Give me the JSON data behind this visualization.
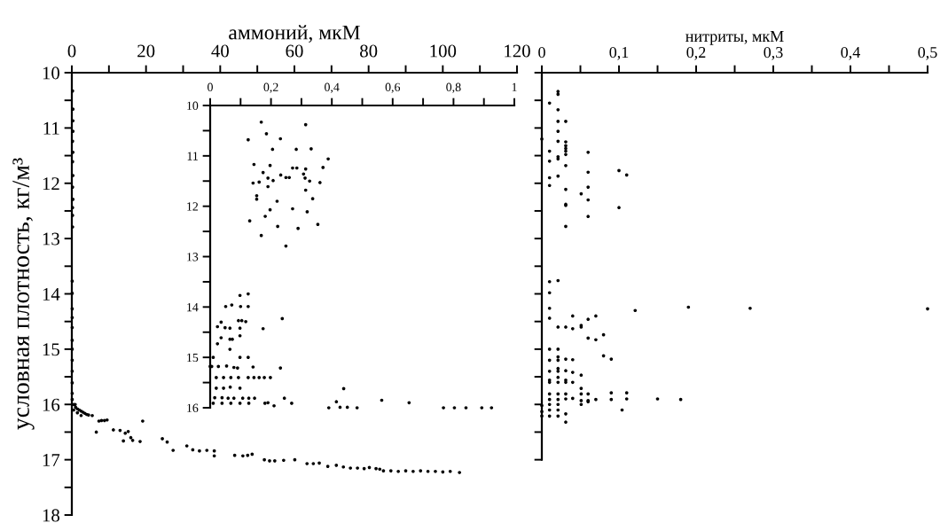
{
  "chart_data": [
    {
      "type": "scatter",
      "xlabel": "аммоний, мкМ",
      "ylabel": "условная плотность, кг/м³",
      "marker": "circle",
      "xlim": [
        0,
        120
      ],
      "ylim": [
        18,
        10
      ],
      "xticks": [
        0,
        {
          "value": 10,
          "label": null
        },
        20,
        {
          "value": 30,
          "label": null
        },
        40,
        {
          "value": 50,
          "label": null
        },
        60,
        {
          "value": 70,
          "label": null
        },
        80,
        {
          "value": 90,
          "label": null
        },
        100,
        {
          "value": 110,
          "label": null
        },
        120
      ],
      "yticks": [
        10,
        {
          "value": 10.5,
          "label": null
        },
        11,
        {
          "value": 11.5,
          "label": null
        },
        12,
        {
          "value": 12.5,
          "label": null
        },
        13,
        {
          "value": 13.5,
          "label": null
        },
        14,
        {
          "value": 14.5,
          "label": null
        },
        15,
        {
          "value": 15.5,
          "label": null
        },
        16,
        {
          "value": 16.5,
          "label": null
        },
        17,
        {
          "value": 17.5,
          "label": null
        },
        18
      ],
      "series": [
        {
          "color": "#000000",
          "x": [
            0.2,
            0.3,
            0.3,
            0.3,
            0.2,
            0.3,
            0.2,
            0.3,
            0.2,
            0.3,
            0.2,
            0.2,
            0.2,
            0.1,
            0.1,
            0.1,
            0.1,
            0.1,
            0.1,
            0.1,
            0.1,
            0.1,
            0.1,
            0.1,
            0.1,
            0.5,
            0.9,
            1,
            1.5,
            2,
            2.5,
            3,
            3.5,
            4,
            4.5,
            5.5,
            0.5,
            1.5,
            2.5,
            6.6,
            7.3,
            8,
            8.8,
            9.5,
            19.1,
            11.2,
            13.0,
            14.4,
            15.2,
            13.9,
            15.9,
            16.4,
            18.4,
            24.4,
            25.7,
            27.3,
            31,
            32.6,
            34.4,
            36.4,
            38.4,
            38.4,
            43.9,
            46.1,
            47.4,
            48.6,
            51.9,
            53.3,
            54.7,
            57.1,
            60.1,
            63.4,
            65.1,
            66.7,
            69.0,
            71.3,
            73.2,
            75.1,
            77,
            78.8,
            80.2,
            82,
            83,
            84,
            86,
            88,
            90,
            92,
            94,
            96,
            98,
            100,
            102,
            104.5
          ],
          "values": [
            10.33,
            10.66,
            10.87,
            11.06,
            11.24,
            11.44,
            11.61,
            11.86,
            12.07,
            12.29,
            12.44,
            12.58,
            12.79,
            13.77,
            13.99,
            14.27,
            14.43,
            14.61,
            14.84,
            15.0,
            15.2,
            15.4,
            15.61,
            15.8,
            15.91,
            16.0,
            16.0,
            16.05,
            16.08,
            16.1,
            16.12,
            16.14,
            16.16,
            16.18,
            16.19,
            16.2,
            16.1,
            16.15,
            16.2,
            16.5,
            16.3,
            16.29,
            16.29,
            16.28,
            16.3,
            16.46,
            16.47,
            16.52,
            16.49,
            16.66,
            16.6,
            16.65,
            16.67,
            16.62,
            16.68,
            16.83,
            16.75,
            16.82,
            16.84,
            16.83,
            16.84,
            16.93,
            16.92,
            16.93,
            16.92,
            16.9,
            17.0,
            17.02,
            17.02,
            17.01,
            17.0,
            17.07,
            17.07,
            17.06,
            17.12,
            17.1,
            17.13,
            17.15,
            17.15,
            17.16,
            17.14,
            17.16,
            17.17,
            17.2,
            17.2,
            17.21,
            17.2,
            17.21,
            17.2,
            17.21,
            17.21,
            17.22,
            17.21,
            17.23
          ]
        }
      ]
    },
    {
      "type": "scatter",
      "marker": "circle",
      "xlim": [
        0,
        1
      ],
      "ylim": [
        16,
        10
      ],
      "xticks": [
        0,
        {
          "value": 0.1,
          "label": null
        },
        {
          "value": 0.2,
          "label": "0,2"
        },
        {
          "value": 0.3,
          "label": null
        },
        {
          "value": 0.4,
          "label": "0,4"
        },
        {
          "value": 0.5,
          "label": null
        },
        {
          "value": 0.6,
          "label": "0,6"
        },
        {
          "value": 0.7,
          "label": null
        },
        {
          "value": 0.8,
          "label": "0,8"
        },
        {
          "value": 0.9,
          "label": null
        },
        1
      ],
      "yticks": [
        10,
        {
          "value": 10.5,
          "label": null
        },
        11,
        {
          "value": 11.5,
          "label": null
        },
        12,
        {
          "value": 12.5,
          "label": null
        },
        13,
        {
          "value": 13.5,
          "label": null
        },
        14,
        {
          "value": 14.5,
          "label": null
        },
        15,
        {
          "value": 15.5,
          "label": null
        },
        16
      ],
      "series": [
        {
          "color": "#000000",
          "x": [
            0.168,
            0.314,
            0.185,
            0.125,
            0.231,
            0.205,
            0.283,
            0.332,
            0.388,
            0.144,
            0.197,
            0.271,
            0.285,
            0.314,
            0.371,
            0.174,
            0.232,
            0.249,
            0.26,
            0.307,
            0.312,
            0.19,
            0.207,
            0.327,
            0.161,
            0.141,
            0.361,
            0.19,
            0.314,
            0.153,
            0.153,
            0.337,
            0.22,
            0.197,
            0.271,
            0.319,
            0.181,
            0.13,
            0.222,
            0.289,
            0.354,
            0.168,
            0.249,
            0.098,
            0.125,
            0.051,
            0.071,
            0.1,
            0.125,
            0.237,
            0.093,
            0.104,
            0.117,
            0.036,
            0.024,
            0.049,
            0.065,
            0.098,
            0.174,
            0.036,
            0.065,
            0.073,
            0.098,
            0.024,
            0.065,
            0.01,
            0.098,
            0.125,
            0.0,
            0.005,
            0.027,
            0.054,
            0.078,
            0.09,
            0.141,
            0.231,
            0.02,
            0.044,
            0.068,
            0.093,
            0.125,
            0.144,
            0.161,
            0.178,
            0.198,
            0.02,
            0.044,
            0.066,
            0.098,
            0.439,
            0.015,
            0.039,
            0.059,
            0.078,
            0.107,
            0.127,
            0.146,
            0.244,
            0.564,
            0.654,
            0.01,
            0.039,
            0.068,
            0.098,
            0.127,
            0.18,
            0.21,
            0.19,
            0.268,
            0.415,
            0.427,
            0.39,
            0.451,
            0.483,
            0.767,
            0.803,
            0.841,
            0.893,
            0.925
          ],
          "values": [
            10.33,
            10.38,
            10.56,
            10.68,
            10.66,
            10.87,
            10.87,
            10.86,
            11.06,
            11.17,
            11.19,
            11.24,
            11.24,
            11.26,
            11.23,
            11.33,
            11.38,
            11.43,
            11.43,
            11.36,
            11.44,
            11.44,
            11.49,
            11.5,
            11.52,
            11.54,
            11.53,
            11.61,
            11.68,
            11.79,
            11.86,
            11.85,
            11.9,
            12.07,
            12.05,
            12.11,
            12.2,
            12.29,
            12.4,
            12.44,
            12.36,
            12.58,
            12.79,
            13.77,
            13.74,
            13.99,
            13.96,
            13.99,
            13.99,
            14.23,
            14.27,
            14.27,
            14.29,
            14.3,
            14.39,
            14.41,
            14.42,
            14.42,
            14.43,
            14.61,
            14.64,
            14.64,
            14.57,
            14.73,
            14.84,
            15.0,
            15.0,
            15.0,
            15.18,
            15.18,
            15.18,
            15.17,
            15.2,
            15.21,
            15.19,
            15.21,
            15.4,
            15.4,
            15.4,
            15.4,
            15.4,
            15.4,
            15.4,
            15.4,
            15.4,
            15.61,
            15.61,
            15.59,
            15.61,
            15.62,
            15.8,
            15.8,
            15.81,
            15.81,
            15.81,
            15.81,
            15.81,
            15.81,
            15.85,
            15.9,
            15.91,
            15.91,
            15.91,
            15.91,
            15.91,
            15.91,
            15.96,
            15.9,
            15.91,
            15.88,
            15.99,
            16.0,
            15.99,
            16.0,
            16.0,
            16.0,
            16.0,
            16.0,
            16.0
          ]
        }
      ]
    },
    {
      "type": "scatter",
      "xlabel": "нитриты, мкМ",
      "marker": "circle",
      "tick_labels": "x",
      "xlim": [
        0,
        0.5
      ],
      "ylim": [
        17,
        10
      ],
      "xticks": [
        0,
        {
          "value": 0.05,
          "label": null
        },
        {
          "value": 0.1,
          "label": "0,1"
        },
        {
          "value": 0.15,
          "label": null
        },
        {
          "value": 0.2,
          "label": "0,2"
        },
        {
          "value": 0.25,
          "label": null
        },
        {
          "value": 0.3,
          "label": "0,3"
        },
        {
          "value": 0.35,
          "label": null
        },
        {
          "value": 0.4,
          "label": "0,4"
        },
        {
          "value": 0.45,
          "label": null
        },
        {
          "value": 0.5,
          "label": "0,5"
        }
      ],
      "yticks": [
        10,
        {
          "value": 10.5,
          "label": null
        },
        11,
        {
          "value": 11.5,
          "label": null
        },
        12,
        {
          "value": 12.5,
          "label": null
        },
        13,
        {
          "value": 13.5,
          "label": null
        },
        14,
        {
          "value": 14.5,
          "label": null
        },
        15,
        {
          "value": 15.5,
          "label": null
        },
        16,
        {
          "value": 16.5,
          "label": null
        },
        17
      ],
      "series": [
        {
          "color": "#000000",
          "x": [
            0.021,
            0.021,
            0.01,
            0.021,
            0.021,
            0.031,
            0.021,
            0.0,
            0.021,
            0.031,
            0.031,
            0.031,
            0.031,
            0.031,
            0.01,
            0.06,
            0.021,
            0.021,
            0.01,
            0.031,
            0.1,
            0.11,
            0.01,
            0.021,
            0.06,
            0.01,
            0.06,
            0.031,
            0.051,
            0.06,
            0.031,
            0.031,
            0.1,
            0.06,
            0.031,
            0.01,
            0.021,
            0.01,
            0.01,
            0.01,
            0.04,
            0.06,
            0.07,
            0.121,
            0.19,
            0.27,
            0.5,
            0.021,
            0.031,
            0.04,
            0.051,
            0.051,
            0.06,
            0.07,
            0.08,
            0.08,
            0.09,
            0.01,
            0.021,
            0.01,
            0.021,
            0.021,
            0.031,
            0.04,
            0.01,
            0.021,
            0.021,
            0.031,
            0.04,
            0.051,
            0.01,
            0.01,
            0.021,
            0.021,
            0.031,
            0.031,
            0.04,
            0.051,
            0.01,
            0.021,
            0.031,
            0.051,
            0.06,
            0.09,
            0.11,
            0.01,
            0.021,
            0.031,
            0.04,
            0.051,
            0.06,
            0.07,
            0.09,
            0.11,
            0.15,
            0.18,
            0.051,
            0.06,
            0.104,
            0.0,
            0.0,
            0.0,
            0.01,
            0.01,
            0.01,
            0.021,
            0.021,
            0.021,
            0.031,
            0.031
          ],
          "values": [
            10.34,
            10.39,
            10.55,
            10.67,
            10.88,
            10.88,
            11.06,
            11.2,
            11.24,
            11.25,
            11.32,
            11.37,
            11.42,
            11.48,
            11.42,
            11.44,
            11.52,
            11.56,
            11.6,
            11.68,
            11.77,
            11.85,
            11.9,
            11.87,
            11.8,
            12.04,
            12.07,
            12.11,
            12.19,
            12.3,
            12.38,
            12.4,
            12.44,
            12.6,
            12.78,
            13.78,
            13.76,
            13.98,
            14.26,
            14.44,
            14.4,
            14.46,
            14.4,
            14.3,
            14.24,
            14.26,
            14.27,
            14.6,
            14.6,
            14.63,
            14.57,
            14.6,
            14.8,
            14.83,
            14.74,
            15.12,
            15.18,
            15.0,
            15.0,
            15.2,
            15.14,
            15.2,
            15.18,
            15.19,
            15.4,
            15.35,
            15.4,
            15.39,
            15.42,
            15.47,
            15.56,
            15.6,
            15.51,
            15.6,
            15.56,
            15.6,
            15.6,
            15.71,
            15.81,
            15.81,
            15.81,
            15.81,
            15.81,
            15.79,
            15.79,
            15.91,
            15.91,
            15.9,
            15.89,
            15.93,
            15.93,
            15.91,
            15.91,
            15.9,
            15.9,
            15.91,
            16.0,
            15.95,
            16.1,
            16.02,
            16.13,
            16.21,
            16.0,
            16.1,
            16.21,
            16.0,
            16.1,
            16.21,
            16.17,
            16.32
          ]
        }
      ]
    }
  ]
}
